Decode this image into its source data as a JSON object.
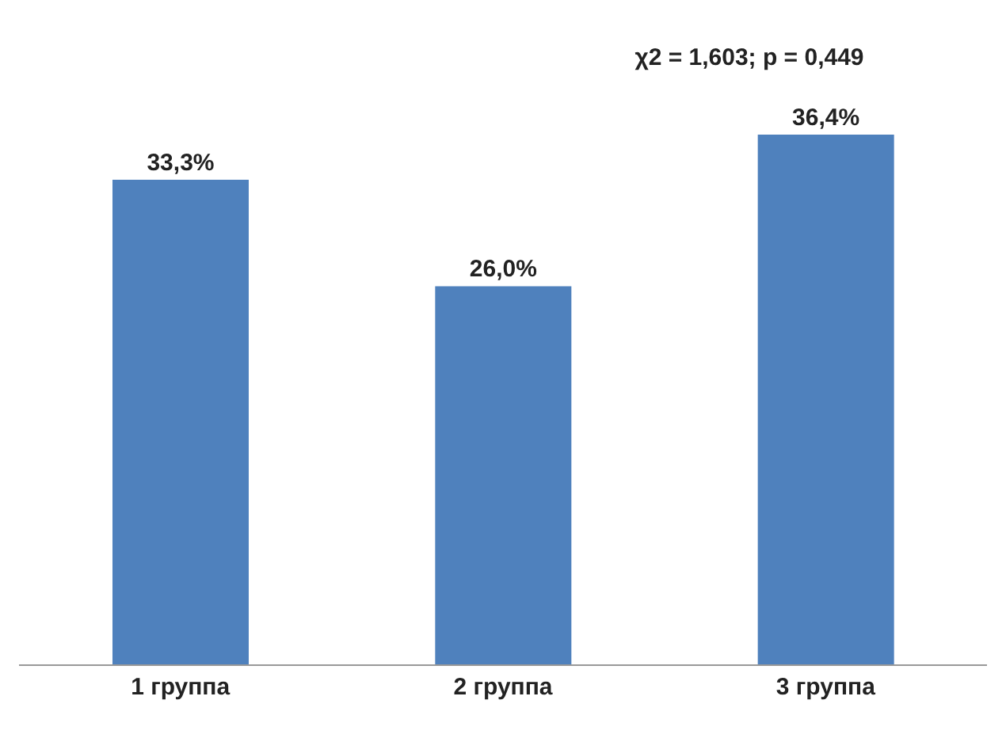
{
  "chart_data": {
    "type": "bar",
    "categories": [
      "1 группа",
      "2 группа",
      "3 группа"
    ],
    "values": [
      33.3,
      26.0,
      36.4
    ],
    "value_labels": [
      "33,3%",
      "26,0%",
      "36,4%"
    ],
    "color": "#4f81bd",
    "tick_labels": "x",
    "annotations": [
      "χ2 = 1,603; p = 0,449"
    ]
  }
}
